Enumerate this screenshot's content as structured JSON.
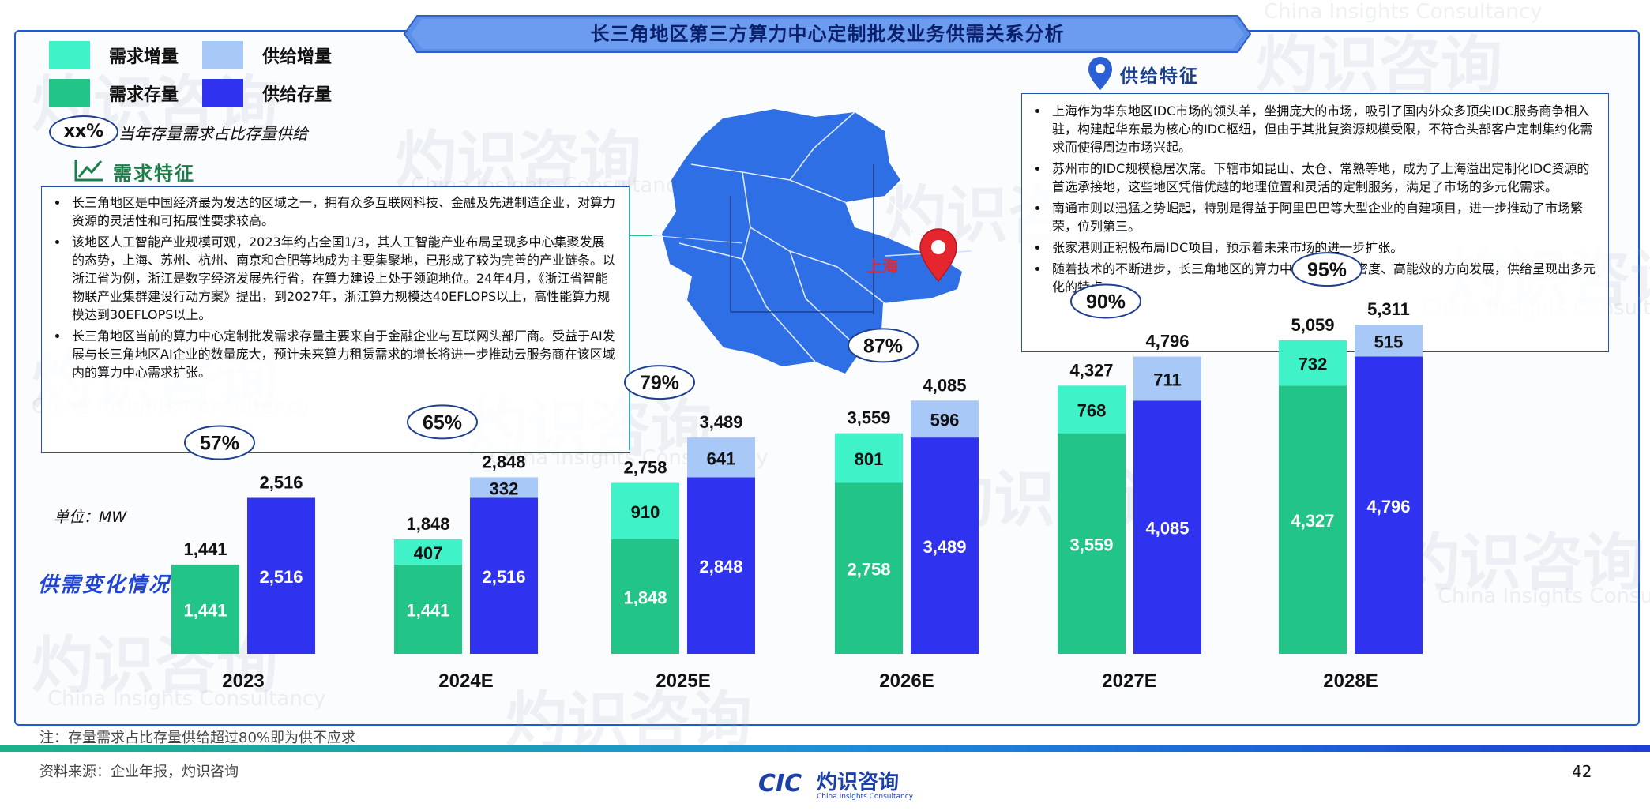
{
  "header": {
    "title": "长三角地区第三方算力中心定制批发业务供需关系分析"
  },
  "watermark": {
    "brand_cn": "灼识咨询",
    "brand_en": "China Insights Consultancy",
    "brand_logo": "CIC"
  },
  "legend": {
    "items": [
      {
        "label": "需求增量",
        "color": "#3ff2c8"
      },
      {
        "label": "供给增量",
        "color": "#a8c8f8"
      },
      {
        "label": "需求存量",
        "color": "#22c487"
      },
      {
        "label": "供给存量",
        "color": "#2f32ee"
      }
    ],
    "ratio_badge": "xx%",
    "ratio_text": "当年存量需求占比存量供给"
  },
  "demand": {
    "title": "需求特征",
    "bullets": [
      "长三角地区是中国经济最为发达的区域之一，拥有众多互联网科技、金融及先进制造企业，对算力资源的灵活性和可拓展性要求较高。",
      "该地区人工智能产业规模可观，2023年约占全国1/3，其人工智能产业布局呈现多中心集聚发展的态势，上海、苏州、杭州、南京和合肥等地成为主要集聚地，已形成了较为完善的产业链条。以浙江省为例，浙江是数字经济发展先行省，在算力建设上处于领跑地位。24年4月，《浙江省智能物联产业集群建设行动方案》提出，到2027年，浙江算力规模达40EFLOPS以上，高性能算力规模达到30EFLOPS以上。",
      "长三角地区当前的算力中心定制批发需求存量主要来自于金融企业与互联网头部厂商。受益于AI发展与长三角地区AI企业的数量庞大，预计未来算力租赁需求的增长将进一步推动云服务商在该区域内的算力中心需求扩张。"
    ]
  },
  "map": {
    "city_label": "上海"
  },
  "supply": {
    "title": "供给特征",
    "bullets": [
      "上海作为华东地区IDC市场的领头羊，坐拥庞大的市场，吸引了国内外众多顶尖IDC服务商争相入驻，构建起华东最为核心的IDC枢纽，但由于其批复资源规模受限，不符合头部客户定制集约化需求而使得周边市场兴起。",
      "苏州市的IDC规模稳居次席。下辖市如昆山、太仓、常熟等地，成为了上海溢出定制化IDC资源的首选承接地，这些地区凭借优越的地理位置和灵活的定制服务，满足了市场的多元化需求。",
      "南通市则以迅猛之势崛起，特别是得益于阿里巴巴等大型企业的自建项目，进一步推动了市场繁荣，位列第三。",
      "张家港则正积极布局IDC项目，预示着未来市场的进一步扩张。",
      "随着技术的不断进步，长三角地区的算力中心正在向高密度、高能效的方向发展，供给呈现出多元化的特点。"
    ]
  },
  "chart_labels": {
    "unit": "单位：MW",
    "title": "供需变化情况"
  },
  "chart_data": {
    "type": "bar",
    "categories": [
      "2023",
      "2024E",
      "2025E",
      "2026E",
      "2027E",
      "2028E"
    ],
    "series": [
      {
        "name": "需求存量",
        "values": [
          1441,
          1441,
          1848,
          2758,
          3559,
          4327
        ]
      },
      {
        "name": "需求增量",
        "values": [
          0,
          407,
          910,
          801,
          768,
          732
        ]
      },
      {
        "name": "供给存量",
        "values": [
          2516,
          2516,
          2848,
          3489,
          4085,
          4796
        ]
      },
      {
        "name": "供给增量",
        "values": [
          0,
          332,
          641,
          596,
          711,
          515
        ]
      }
    ],
    "demand_totals": [
      1441,
      1848,
      2758,
      3559,
      4327,
      5059
    ],
    "supply_totals": [
      2516,
      2848,
      3489,
      4085,
      4796,
      5311
    ],
    "ratio_labels": [
      "57%",
      "65%",
      "79%",
      "87%",
      "90%",
      "95%"
    ],
    "unit": "MW"
  },
  "footer": {
    "note": "注：存量需求占比存量供给超过80%即为供不应求",
    "source": "资料来源：企业年报，灼识咨询",
    "page": "42",
    "logo_cn": "灼识咨询",
    "logo_en": "China Insights Consultancy",
    "logo_mark": "CIC"
  }
}
